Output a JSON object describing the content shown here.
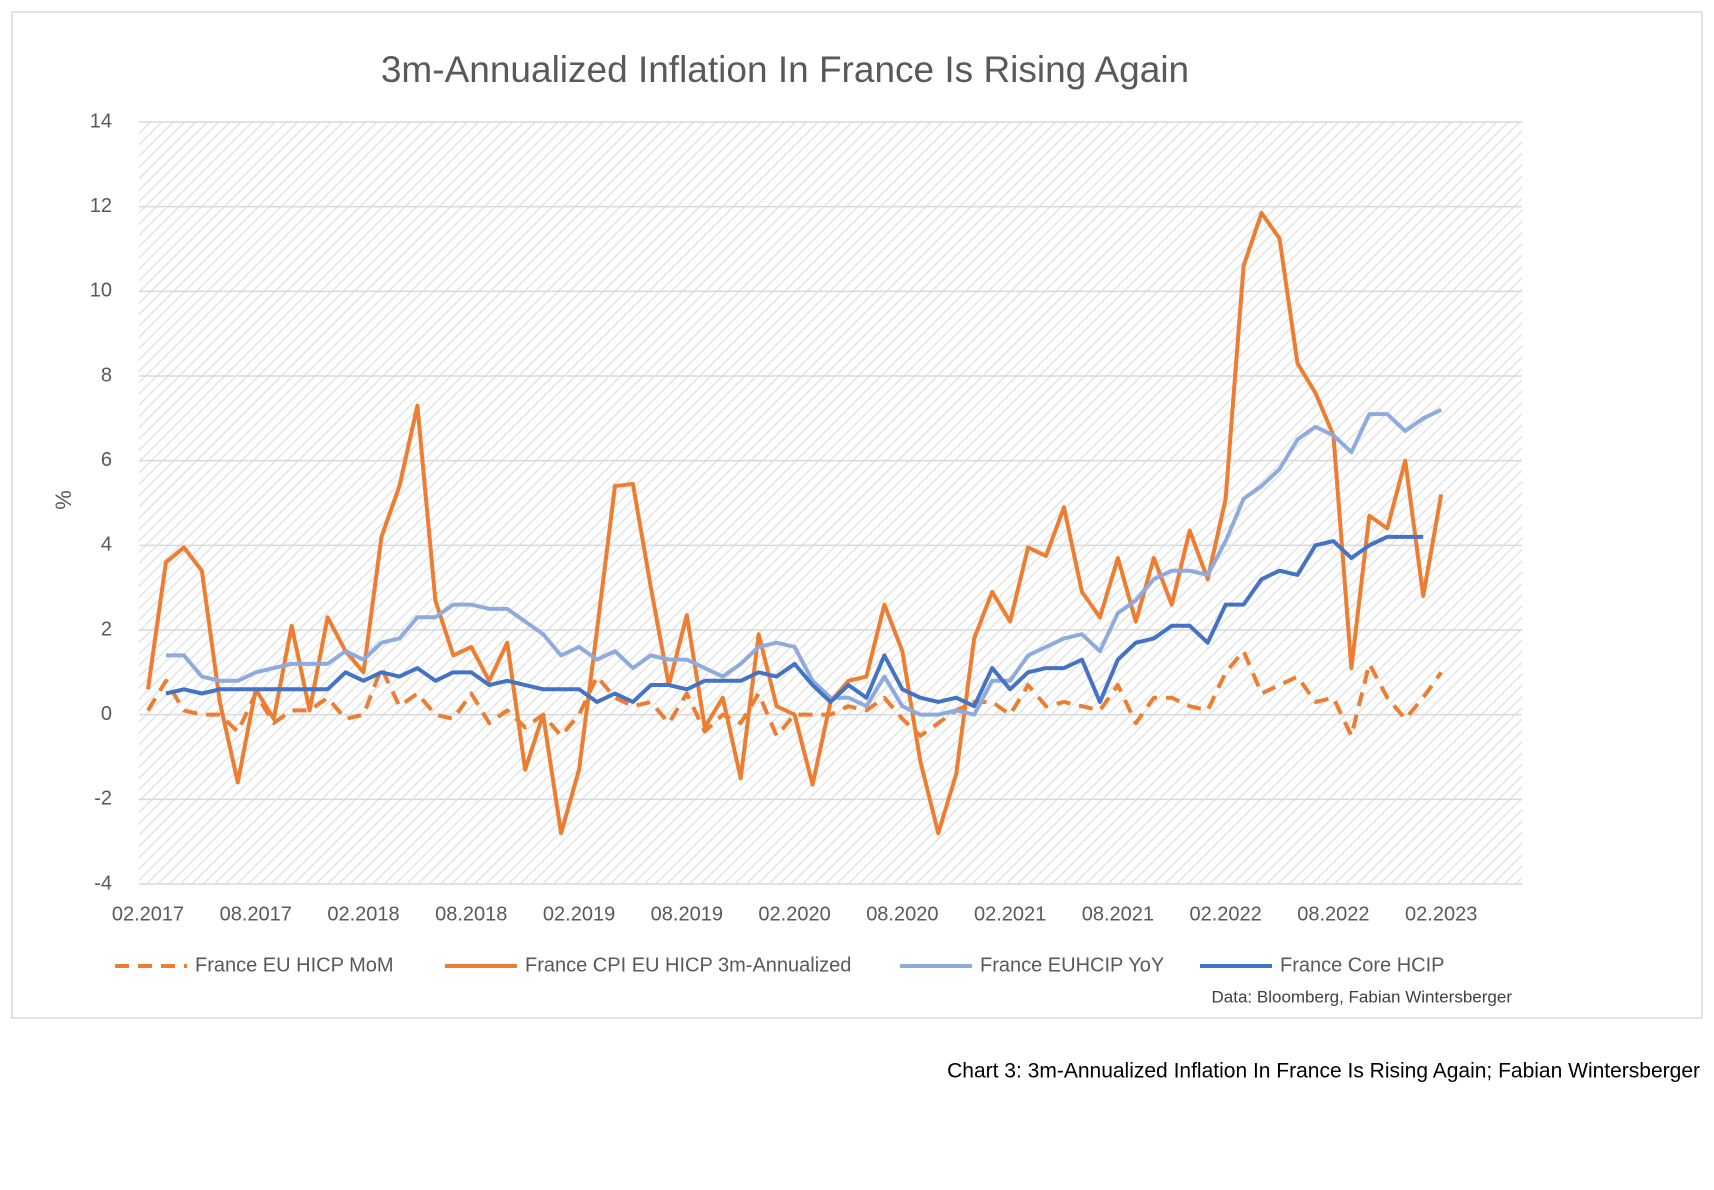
{
  "chart_data": {
    "type": "line",
    "title": "3m-Annualized Inflation In France Is Rising Again",
    "y_label": "%",
    "source": "Data: Bloomberg, Fabian Wintersberger",
    "caption": "Chart 3: 3m-Annualized Inflation In France Is Rising Again; Fabian Wintersberger",
    "categories": [
      "02.2017",
      null,
      null,
      null,
      null,
      null,
      "08.2017",
      null,
      null,
      null,
      null,
      null,
      "02.2018",
      null,
      null,
      null,
      null,
      null,
      "08.2018",
      null,
      null,
      null,
      null,
      null,
      "02.2019",
      null,
      null,
      null,
      null,
      null,
      "08.2019",
      null,
      null,
      null,
      null,
      null,
      "02.2020",
      null,
      null,
      null,
      null,
      null,
      "08.2020",
      null,
      null,
      null,
      null,
      null,
      "02.2021",
      null,
      null,
      null,
      null,
      null,
      "08.2021",
      null,
      null,
      null,
      null,
      null,
      "02.2022",
      null,
      null,
      null,
      null,
      null,
      "08.2022",
      null,
      null,
      null,
      null,
      null,
      "02.2023",
      null,
      null,
      null,
      null
    ],
    "series": [
      {
        "name": "France EU HICP MoM",
        "color": "#ed7d31",
        "dashed": true,
        "values": [
          0.1,
          0.8,
          0.1,
          0.0,
          0.0,
          -0.4,
          0.5,
          -0.2,
          0.1,
          0.1,
          0.4,
          -0.1,
          0.0,
          1.1,
          0.2,
          0.5,
          0.0,
          -0.1,
          0.5,
          -0.2,
          0.1,
          -0.3,
          0.0,
          -0.5,
          0.0,
          0.9,
          0.4,
          0.2,
          0.3,
          -0.2,
          0.5,
          -0.4,
          0.0,
          -0.2,
          0.5,
          -0.5,
          0.0,
          0.0,
          0.0,
          0.2,
          0.1,
          0.4,
          -0.1,
          -0.5,
          -0.2,
          0.1,
          0.3,
          0.3,
          0.0,
          0.7,
          0.2,
          0.3,
          0.2,
          0.1,
          0.7,
          -0.2,
          0.4,
          0.4,
          0.2,
          0.1,
          1.0,
          1.5,
          0.5,
          0.7,
          0.9,
          0.3,
          0.4,
          -0.5,
          1.2,
          0.4,
          -0.1,
          0.4,
          1.0,
          null,
          null,
          null,
          null
        ]
      },
      {
        "name": "France CPI  EU HICP 3m-Annualized",
        "color": "#ed7d31",
        "dashed": false,
        "values": [
          0.6,
          3.6,
          3.95,
          3.4,
          0.3,
          -1.6,
          0.6,
          -0.1,
          2.1,
          0.1,
          2.3,
          1.5,
          1.0,
          4.2,
          5.4,
          7.3,
          2.7,
          1.4,
          1.6,
          0.8,
          1.7,
          -1.3,
          0.0,
          -2.8,
          -1.3,
          2.0,
          5.4,
          5.45,
          3.0,
          0.7,
          2.35,
          -0.3,
          0.4,
          -1.5,
          1.9,
          0.2,
          0.0,
          -1.65,
          0.3,
          0.8,
          0.9,
          2.6,
          1.5,
          -1.1,
          -2.8,
          -1.4,
          1.8,
          2.9,
          2.2,
          3.95,
          3.75,
          4.9,
          2.9,
          2.3,
          3.7,
          2.2,
          3.7,
          2.6,
          4.35,
          3.2,
          5.1,
          10.6,
          11.85,
          11.25,
          8.3,
          7.6,
          6.6,
          1.1,
          4.7,
          4.4,
          6.0,
          2.8,
          5.2,
          null,
          null,
          null,
          null
        ]
      },
      {
        "name": "France EUHCIP YoY",
        "color": "#8faadc",
        "dashed": false,
        "values": [
          null,
          1.4,
          1.4,
          0.9,
          0.8,
          0.8,
          1.0,
          1.1,
          1.2,
          1.2,
          1.2,
          1.5,
          1.3,
          1.7,
          1.8,
          2.3,
          2.3,
          2.6,
          2.6,
          2.5,
          2.5,
          2.2,
          1.9,
          1.4,
          1.6,
          1.3,
          1.5,
          1.1,
          1.4,
          1.3,
          1.3,
          1.1,
          0.9,
          1.2,
          1.6,
          1.7,
          1.6,
          0.8,
          0.4,
          0.4,
          0.2,
          0.9,
          0.2,
          0.0,
          0.0,
          0.1,
          0.0,
          0.8,
          0.8,
          1.4,
          1.6,
          1.8,
          1.9,
          1.5,
          2.4,
          2.7,
          3.2,
          3.4,
          3.4,
          3.3,
          4.1,
          5.1,
          5.4,
          5.8,
          6.5,
          6.8,
          6.6,
          6.2,
          7.1,
          7.1,
          6.7,
          7.0,
          7.2,
          null,
          null,
          null,
          null
        ]
      },
      {
        "name": "France Core HCIP",
        "color": "#4472c4",
        "dashed": false,
        "values": [
          null,
          0.5,
          0.6,
          0.5,
          0.6,
          0.6,
          0.6,
          0.6,
          0.6,
          0.6,
          0.6,
          1.0,
          0.8,
          1.0,
          0.9,
          1.1,
          0.8,
          1.0,
          1.0,
          0.7,
          0.8,
          0.7,
          0.6,
          0.6,
          0.6,
          0.3,
          0.5,
          0.3,
          0.7,
          0.7,
          0.6,
          0.8,
          0.8,
          0.8,
          1.0,
          0.9,
          1.2,
          0.7,
          0.3,
          0.7,
          0.4,
          1.4,
          0.6,
          0.4,
          0.3,
          0.4,
          0.2,
          1.1,
          0.6,
          1.0,
          1.1,
          1.1,
          1.3,
          0.3,
          1.3,
          1.7,
          1.8,
          2.1,
          2.1,
          1.7,
          2.6,
          2.6,
          3.2,
          3.4,
          3.3,
          4.0,
          4.1,
          3.7,
          4.0,
          4.2,
          4.2,
          4.2,
          null,
          null,
          null,
          null,
          null
        ]
      }
    ],
    "ylim": [
      -4,
      14
    ],
    "yticks": [
      -4,
      -2,
      0,
      2,
      4,
      6,
      8,
      10,
      12,
      14
    ],
    "grid": true,
    "legend": "bottom"
  }
}
